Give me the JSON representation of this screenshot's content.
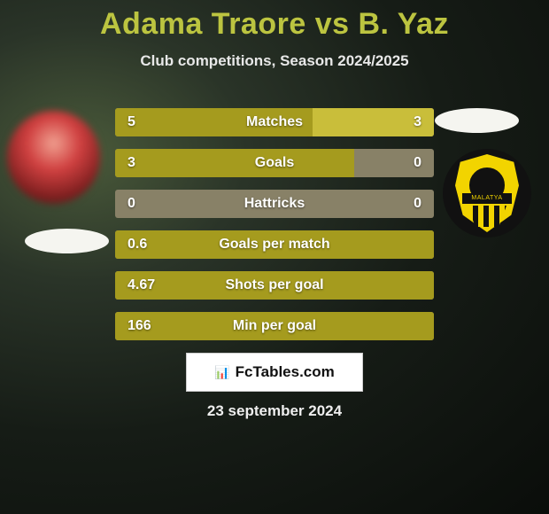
{
  "title": "Adama Traore vs B. Yaz",
  "subtitle": "Club competitions, Season 2024/2025",
  "date": "23 september 2024",
  "footer_logo": "📊",
  "footer_text": "FcTables.com",
  "crest_band": "MALATYA",
  "colors": {
    "title": "#bcc440",
    "subtitle": "#e8e8e8",
    "bar_left": "#a59b1e",
    "bar_right": "#c9be3a",
    "bar_track": "#888167",
    "badge_bg": "#ffffff",
    "crest_yellow": "#f2d400",
    "crest_black": "#111111"
  },
  "stats": [
    {
      "label": "Matches",
      "left_val": "5",
      "right_val": "3",
      "left_pct": 62,
      "right_pct": 38
    },
    {
      "label": "Goals",
      "left_val": "3",
      "right_val": "0",
      "left_pct": 75,
      "right_pct": 0
    },
    {
      "label": "Hattricks",
      "left_val": "0",
      "right_val": "0",
      "left_pct": 0,
      "right_pct": 0
    },
    {
      "label": "Goals per match",
      "left_val": "0.6",
      "right_val": "",
      "left_pct": 100,
      "right_pct": 0
    },
    {
      "label": "Shots per goal",
      "left_val": "4.67",
      "right_val": "",
      "left_pct": 100,
      "right_pct": 0
    },
    {
      "label": "Min per goal",
      "left_val": "166",
      "right_val": "",
      "left_pct": 100,
      "right_pct": 0
    }
  ]
}
